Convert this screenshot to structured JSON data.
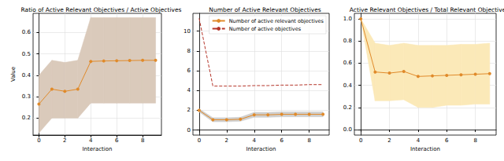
{
  "chart_data": [
    {
      "type": "line",
      "title": "Ratio of Active Relevant Objectives / Active Objectives",
      "x_label": "Interaction",
      "y_label": "Value",
      "x": [
        0,
        1,
        2,
        3,
        4,
        5,
        6,
        7,
        8,
        9
      ],
      "series": [
        {
          "color": "#e08a2a",
          "marker": "o",
          "line_style": "solid",
          "values": [
            0.265,
            0.335,
            0.325,
            0.335,
            0.465,
            0.467,
            0.468,
            0.469,
            0.47,
            0.47
          ],
          "lower": [
            0.13,
            0.2,
            0.2,
            0.2,
            0.27,
            0.27,
            0.27,
            0.27,
            0.27,
            0.27
          ],
          "upper": [
            0.4,
            0.47,
            0.46,
            0.47,
            0.67,
            0.67,
            0.67,
            0.67,
            0.67,
            0.67
          ]
        }
      ],
      "xlim": [
        -0.45,
        9.45
      ],
      "ylim": [
        0.12,
        0.69
      ],
      "xticks": [
        0,
        2,
        4,
        6,
        8
      ],
      "yticks": [
        0.2,
        0.3,
        0.4,
        0.5,
        0.6
      ],
      "grid": true
    },
    {
      "type": "line",
      "title": "Number of Active Relevant Objectives",
      "x_label": "Interaction",
      "x": [
        0,
        1,
        2,
        3,
        4,
        5,
        6,
        7,
        8,
        9
      ],
      "series": [
        {
          "name": "Number of active relevant objectives",
          "color": "#e08a2a",
          "marker": "o",
          "line_style": "solid",
          "values": [
            2.0,
            1.05,
            1.05,
            1.1,
            1.55,
            1.55,
            1.6,
            1.6,
            1.6,
            1.6
          ],
          "lower": [
            1.85,
            0.85,
            0.85,
            0.9,
            1.3,
            1.3,
            1.35,
            1.35,
            1.35,
            1.35
          ],
          "upper": [
            2.15,
            1.25,
            1.25,
            1.3,
            1.8,
            1.8,
            1.85,
            1.85,
            1.85,
            1.85
          ]
        },
        {
          "name": "Number of active objectives",
          "color": "#b5352a",
          "marker": "none",
          "line_style": "dashed",
          "values": [
            11.3,
            4.45,
            4.45,
            4.45,
            4.5,
            4.5,
            4.55,
            4.55,
            4.6,
            4.6
          ]
        }
      ],
      "xlim": [
        -0.45,
        9.45
      ],
      "ylim": [
        -0.5,
        11.8
      ],
      "xticks": [
        0,
        2,
        4,
        6,
        8
      ],
      "yticks": [
        0,
        2,
        4,
        6,
        8,
        10
      ],
      "grid": true,
      "legend": "upper right"
    },
    {
      "type": "line",
      "title": "Active Relevant Objectives / Total Relevant Objectives",
      "x_label": "Interaction",
      "x": [
        0,
        1,
        2,
        3,
        4,
        5,
        6,
        7,
        8,
        9
      ],
      "series": [
        {
          "color": "#e08a2a",
          "marker": "o",
          "line_style": "solid",
          "values": [
            1.0,
            0.52,
            0.51,
            0.525,
            0.48,
            0.485,
            0.49,
            0.495,
            0.5,
            0.505
          ],
          "lower": [
            1.0,
            0.26,
            0.26,
            0.27,
            0.2,
            0.2,
            0.22,
            0.22,
            0.23,
            0.23
          ],
          "upper": [
            1.0,
            0.78,
            0.76,
            0.78,
            0.76,
            0.76,
            0.76,
            0.77,
            0.77,
            0.78
          ]
        }
      ],
      "xlim": [
        -0.45,
        9.45
      ],
      "ylim": [
        -0.05,
        1.05
      ],
      "xticks": [
        0,
        2,
        4,
        6,
        8
      ],
      "yticks": [
        {
          "value": 0,
          "label": "0.0"
        },
        0.2,
        0.4,
        0.6,
        0.8,
        {
          "value": 1,
          "label": "1.0"
        }
      ],
      "grid": true
    }
  ]
}
